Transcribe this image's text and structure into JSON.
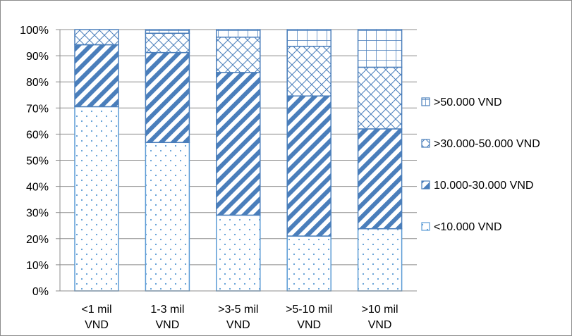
{
  "chart_data": {
    "type": "bar",
    "stacked": true,
    "percent": true,
    "categories": [
      [
        "<1 mil",
        "VND"
      ],
      [
        "1-3 mil",
        "VND"
      ],
      [
        ">3-5 mil",
        "VND"
      ],
      [
        ">5-10 mil",
        "VND"
      ],
      [
        ">10 mil",
        "VND"
      ]
    ],
    "yticks": [
      "0%",
      "10%",
      "20%",
      "30%",
      "40%",
      "50%",
      "60%",
      "70%",
      "80%",
      "90%",
      "100%"
    ],
    "ylim": [
      0,
      100
    ],
    "grid": true,
    "legend_position": "right",
    "series": [
      {
        "name": "<10.000 VND",
        "pattern": "dots",
        "color": "#5b9bd5",
        "values": [
          70.5,
          56.8,
          29.0,
          21.0,
          23.8
        ]
      },
      {
        "name": "10.000-30.000 VND",
        "pattern": "diagonal",
        "color": "#4a7ebb",
        "values": [
          23.7,
          34.4,
          54.6,
          53.6,
          38.2
        ]
      },
      {
        "name": ">30.000-50.000 VND",
        "pattern": "crosshatch",
        "color": "#4a7ebb",
        "values": [
          5.8,
          7.4,
          13.5,
          19.0,
          23.6
        ]
      },
      {
        "name": ">50.000 VND",
        "pattern": "grid",
        "color": "#4a7ebb",
        "values": [
          0.0,
          1.4,
          2.9,
          6.4,
          14.4
        ]
      }
    ],
    "legend_order": [
      ">50.000 VND",
      ">30.000-50.000 VND",
      "10.000-30.000 VND",
      "<10.000 VND"
    ]
  }
}
